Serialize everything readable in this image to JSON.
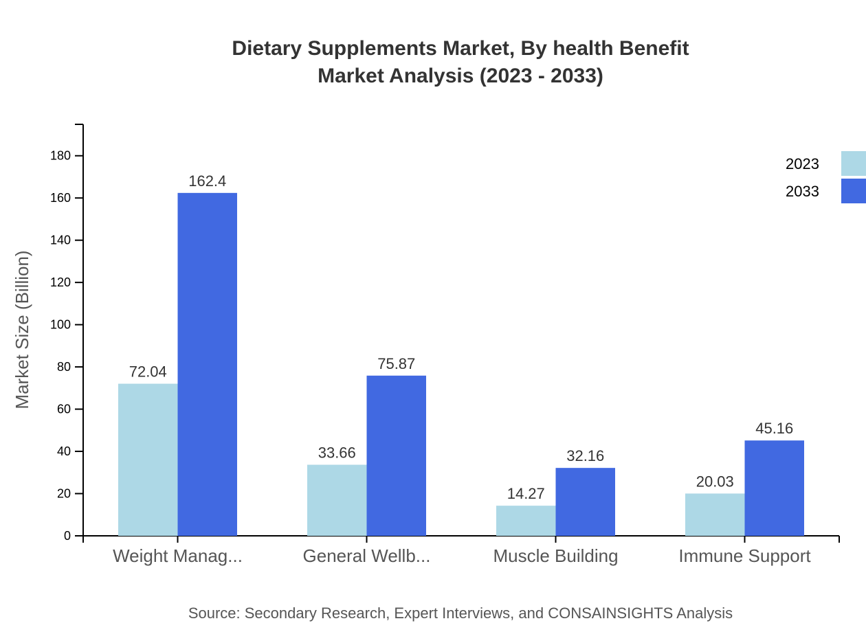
{
  "chart_data": {
    "type": "bar",
    "title": "Dietary Supplements Market, By health Benefit",
    "subtitle": "Market Analysis (2023 - 2033)",
    "xlabel": "",
    "ylabel": "Market Size (Billion)",
    "ylim": [
      0,
      194.88
    ],
    "yticks": [
      0,
      20,
      40,
      60,
      80,
      100,
      120,
      140,
      160,
      180
    ],
    "grid": false,
    "legend_position": "top-right",
    "categories": [
      "Weight Manag...",
      "General Wellb...",
      "Muscle Building",
      "Immune Support"
    ],
    "series": [
      {
        "name": "2023",
        "color": "#ADD8E6",
        "values": [
          72.04,
          33.66,
          14.27,
          20.03
        ],
        "labels": [
          "72.04",
          "33.66",
          "14.27",
          "20.03"
        ]
      },
      {
        "name": "2033",
        "color": "#4169E1",
        "values": [
          162.4,
          75.87,
          32.16,
          45.16
        ],
        "labels": [
          "162.4",
          "75.87",
          "32.16",
          "45.16"
        ]
      }
    ],
    "source": "Source: Secondary Research, Expert Interviews, and CONSAINSIGHTS Analysis"
  }
}
